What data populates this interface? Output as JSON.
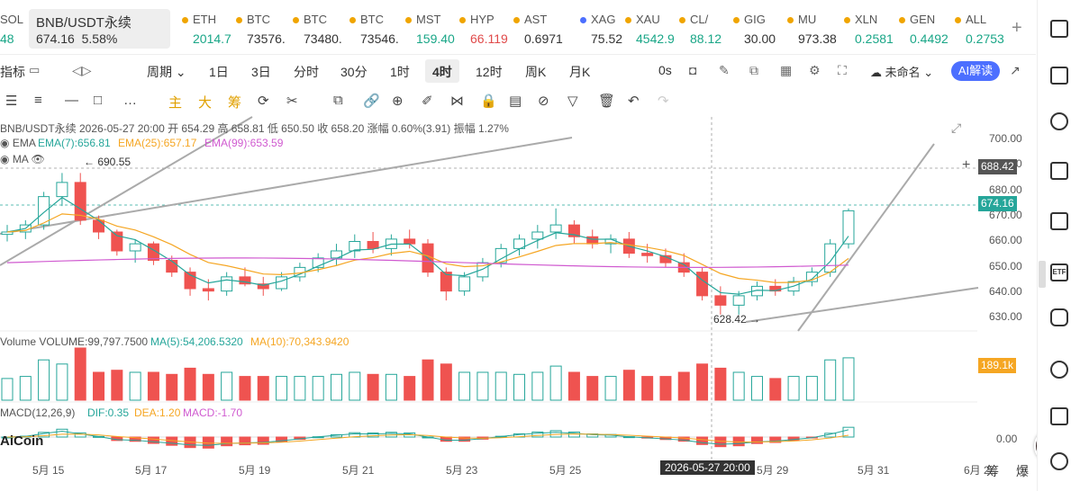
{
  "tickers": [
    {
      "sym": "SOL",
      "price": "48",
      "color": "#19a687",
      "dot": "#8a5cf6",
      "left": 0
    },
    {
      "sym": "ETH",
      "price": "2014.7",
      "color": "#19a687",
      "dot": "#f0a500",
      "left": 200
    },
    {
      "sym": "BTC",
      "price": "73576.",
      "color": "#333",
      "dot": "#f0a500",
      "left": 260
    },
    {
      "sym": "BTC",
      "price": "73480.",
      "color": "#333",
      "dot": "#f0a500",
      "left": 323
    },
    {
      "sym": "BTC",
      "price": "73546.",
      "color": "#333",
      "dot": "#f0a500",
      "left": 386
    },
    {
      "sym": "MST",
      "price": "159.40",
      "color": "#19a687",
      "dot": "#f0a500",
      "left": 448
    },
    {
      "sym": "HYP",
      "price": "66.119",
      "color": "#e04a4a",
      "dot": "#f0a500",
      "left": 508
    },
    {
      "sym": "AST",
      "price": "0.6971",
      "color": "#333",
      "dot": "#f0a500",
      "left": 568
    },
    {
      "sym": "XAG",
      "price": "75.52",
      "color": "#333",
      "dot": "#4c6fff",
      "left": 642
    },
    {
      "sym": "XAU",
      "price": "4542.9",
      "color": "#19a687",
      "dot": "#f0a500",
      "left": 692
    },
    {
      "sym": "CL/",
      "price": "88.12",
      "color": "#19a687",
      "dot": "#f0a500",
      "left": 752
    },
    {
      "sym": "GIG",
      "price": "30.00",
      "color": "#333",
      "dot": "#f0a500",
      "left": 812
    },
    {
      "sym": "MU",
      "price": "973.38",
      "color": "#333",
      "dot": "#f0a500",
      "left": 872
    },
    {
      "sym": "XLN",
      "price": "0.2581",
      "color": "#19a687",
      "dot": "#f0a500",
      "left": 935
    },
    {
      "sym": "GEN",
      "price": "0.4492",
      "color": "#19a687",
      "dot": "#f0a500",
      "left": 996
    },
    {
      "sym": "ALL",
      "price": "0.2753",
      "color": "#19a687",
      "dot": "#f0a500",
      "left": 1058
    }
  ],
  "active_ticker": {
    "name": "BNB/USDT永续",
    "price": "674.16",
    "change": "5.58%"
  },
  "toolbar1": {
    "indicators": "指标",
    "period": "周期",
    "tf_1d": "1日",
    "tf_3d": "3日",
    "tf_min": "分时",
    "tf_30m": "30分",
    "tf_1h": "1时",
    "tf_4h": "4时",
    "tf_12h": "12时",
    "tf_week": "周K",
    "tf_month": "月K",
    "timer": "0s",
    "unnamed": "未命名",
    "ai": "AI解读"
  },
  "toolbar2": {
    "main": "主",
    "big": "大",
    "chips": "筹"
  },
  "info": {
    "header": "BNB/USDT永续  2026-05-27 20:00  开 654.29  高 658.81  低 650.50  收 658.20  涨幅 0.60%(3.91)  振幅 1.27%",
    "ema": "EMA",
    "ema7": "EMA(7):656.81",
    "ema25": "EMA(25):657.17",
    "ema99": "EMA(99):653.59",
    "ma": "MA",
    "high_mark": "← 690.55",
    "low_mark": "628.42 →",
    "volume": "Volume  VOLUME:99,797.7500",
    "vol_ma5": "MA(5):54,206.5320",
    "vol_ma10": "MA(10):70,343.9420",
    "macd": "MACD(12,26,9)",
    "dif": "DIF:0.35",
    "dea": "DEA:1.20",
    "macd_val": "MACD:-1.70",
    "logo": "AiCoin"
  },
  "price_axis": [
    "700.00",
    "690.00",
    "680.00",
    "670.00",
    "660.00",
    "650.00",
    "640.00",
    "630.00"
  ],
  "price_tags": {
    "crosshair": "688.42",
    "last": "674.16",
    "volume": "189.1k",
    "macd_zero": "0.00"
  },
  "date_axis": [
    "5月 15",
    "5月 17",
    "5月 19",
    "5月 21",
    "5月 23",
    "5月 25",
    "5月 29",
    "5月 31",
    "6月 2"
  ],
  "crosshair_date": "2026-05-27 20:00",
  "bottom_right": {
    "chips": "筹",
    "burst": "爆"
  },
  "colors": {
    "up": "#26a69a",
    "down": "#ef5350",
    "ema7": "#26a69a",
    "ema25": "#f5a623",
    "ema99": "#d05ad0",
    "accent": "#4c6fff"
  },
  "chart_data": {
    "type": "candlestick",
    "symbol": "BNB/USDT永续",
    "interval": "4时",
    "ylim": [
      625,
      705
    ],
    "candles": [
      [
        664,
        668,
        661,
        665
      ],
      [
        665,
        670,
        662,
        668
      ],
      [
        668,
        682,
        666,
        680
      ],
      [
        680,
        690,
        676,
        686
      ],
      [
        686,
        690,
        668,
        670
      ],
      [
        670,
        672,
        662,
        665
      ],
      [
        665,
        666,
        655,
        657
      ],
      [
        657,
        662,
        652,
        660
      ],
      [
        660,
        661,
        651,
        653
      ],
      [
        653,
        655,
        646,
        648
      ],
      [
        648,
        650,
        638,
        641
      ],
      [
        641,
        645,
        636,
        640
      ],
      [
        640,
        648,
        638,
        646
      ],
      [
        646,
        650,
        642,
        643
      ],
      [
        643,
        646,
        638,
        641
      ],
      [
        641,
        648,
        640,
        646
      ],
      [
        646,
        652,
        644,
        650
      ],
      [
        650,
        656,
        648,
        654
      ],
      [
        654,
        660,
        651,
        657
      ],
      [
        657,
        664,
        654,
        661
      ],
      [
        661,
        665,
        656,
        658
      ],
      [
        658,
        664,
        655,
        662
      ],
      [
        662,
        666,
        658,
        660
      ],
      [
        660,
        662,
        646,
        648
      ],
      [
        648,
        650,
        636,
        640
      ],
      [
        640,
        648,
        638,
        646
      ],
      [
        646,
        654,
        644,
        652
      ],
      [
        652,
        660,
        650,
        658
      ],
      [
        658,
        664,
        655,
        662
      ],
      [
        662,
        668,
        658,
        665
      ],
      [
        665,
        675,
        662,
        668
      ],
      [
        668,
        670,
        660,
        663
      ],
      [
        663,
        666,
        658,
        660
      ],
      [
        660,
        664,
        656,
        662
      ],
      [
        662,
        665,
        654,
        656
      ],
      [
        656,
        660,
        652,
        655
      ],
      [
        655,
        658,
        650,
        652
      ],
      [
        652,
        656,
        646,
        648
      ],
      [
        648,
        650,
        636,
        638
      ],
      [
        638,
        642,
        630,
        634
      ],
      [
        634,
        640,
        630,
        638
      ],
      [
        638,
        644,
        636,
        642
      ],
      [
        642,
        645,
        638,
        640
      ],
      [
        640,
        646,
        638,
        644
      ],
      [
        644,
        650,
        642,
        648
      ],
      [
        648,
        662,
        646,
        660
      ],
      [
        660,
        675,
        658,
        674
      ]
    ]
  }
}
